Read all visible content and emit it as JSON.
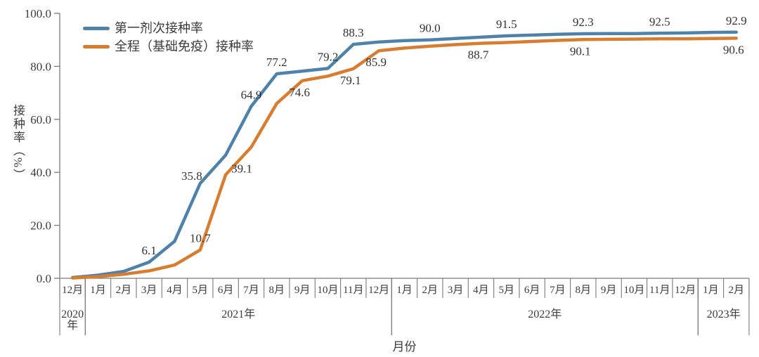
{
  "chart_data": {
    "type": "line",
    "title": "",
    "xlabel": "月份",
    "ylabel": "接种率（%）",
    "ylim": [
      0,
      100
    ],
    "grid": false,
    "legend_position": "top-left",
    "y_tick_values": [
      0,
      20,
      40,
      60,
      80,
      100
    ],
    "y_tick_labels": [
      "0.0",
      "20.0",
      "40.0",
      "60.0",
      "80.0",
      "100.0"
    ],
    "categories": [
      "12月",
      "1月",
      "2月",
      "3月",
      "4月",
      "5月",
      "6月",
      "7月",
      "8月",
      "9月",
      "10月",
      "11月",
      "12月",
      "1月",
      "2月",
      "3月",
      "4月",
      "5月",
      "6月",
      "7月",
      "8月",
      "9月",
      "10月",
      "11月",
      "12月",
      "1月",
      "2月"
    ],
    "year_groups": [
      {
        "label": "2020年",
        "start": 0,
        "span": 1
      },
      {
        "label": "2021年",
        "start": 1,
        "span": 12
      },
      {
        "label": "2022年",
        "start": 13,
        "span": 12
      },
      {
        "label": "2023年",
        "start": 25,
        "span": 2
      }
    ],
    "series": [
      {
        "name": "第一剂次接种率",
        "color": "#4E82AA",
        "values": [
          0.3,
          1.2,
          2.6,
          6.1,
          14.0,
          35.8,
          46.5,
          64.9,
          77.2,
          78.2,
          79.2,
          88.3,
          89.2,
          89.7,
          90.0,
          90.5,
          91.0,
          91.5,
          91.8,
          92.1,
          92.3,
          92.4,
          92.4,
          92.5,
          92.6,
          92.8,
          92.9
        ],
        "point_labels": [
          {
            "i": 3,
            "text": "6.1",
            "pos": "above"
          },
          {
            "i": 5,
            "text": "35.8",
            "pos": "upleft"
          },
          {
            "i": 7,
            "text": "64.9",
            "pos": "above"
          },
          {
            "i": 8,
            "text": "77.2",
            "pos": "above"
          },
          {
            "i": 10,
            "text": "79.2",
            "pos": "above"
          },
          {
            "i": 11,
            "text": "88.3",
            "pos": "above"
          },
          {
            "i": 14,
            "text": "90.0",
            "pos": "above"
          },
          {
            "i": 17,
            "text": "91.5",
            "pos": "above"
          },
          {
            "i": 20,
            "text": "92.3",
            "pos": "above"
          },
          {
            "i": 23,
            "text": "92.5",
            "pos": "above"
          },
          {
            "i": 26,
            "text": "92.9",
            "pos": "above"
          }
        ]
      },
      {
        "name": "全程（基础免疫）接种率",
        "color": "#D87D30",
        "values": [
          0.1,
          0.6,
          1.5,
          2.8,
          5.0,
          10.7,
          39.1,
          49.5,
          66.0,
          74.6,
          76.3,
          79.1,
          85.9,
          86.9,
          87.6,
          88.2,
          88.7,
          89.0,
          89.4,
          89.8,
          90.1,
          90.2,
          90.3,
          90.4,
          90.4,
          90.5,
          90.6
        ],
        "point_labels": [
          {
            "i": 5,
            "text": "10.7",
            "pos": "above"
          },
          {
            "i": 6,
            "text": "39.1",
            "pos": "right"
          },
          {
            "i": 9,
            "text": "74.6",
            "pos": "below"
          },
          {
            "i": 11,
            "text": "79.1",
            "pos": "below"
          },
          {
            "i": 12,
            "text": "85.9",
            "pos": "below"
          },
          {
            "i": 16,
            "text": "88.7",
            "pos": "below"
          },
          {
            "i": 20,
            "text": "90.1",
            "pos": "below"
          },
          {
            "i": 26,
            "text": "90.6",
            "pos": "below"
          }
        ]
      }
    ]
  }
}
